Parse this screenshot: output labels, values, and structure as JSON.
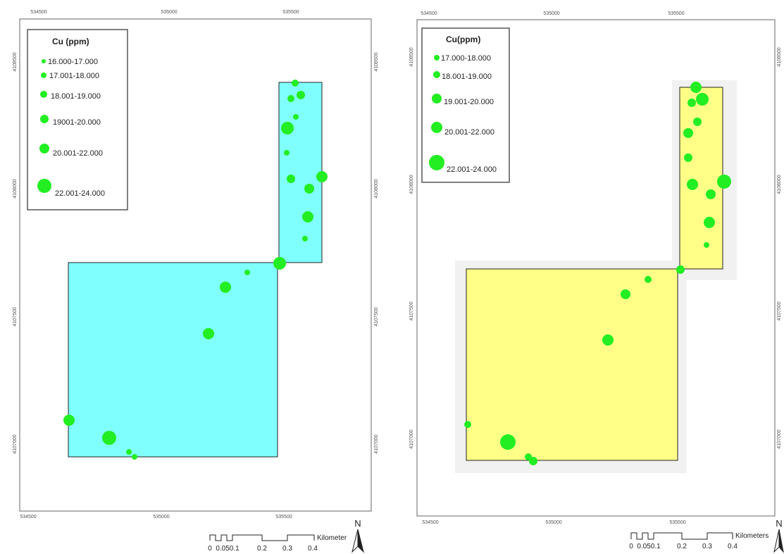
{
  "maps": [
    {
      "legend": {
        "title": "Cu (ppm)",
        "classes": [
          "16.000-17.000",
          "17.001-18.000",
          "18.001-19.000",
          "19001-20.000",
          "20.001-22.000",
          "22.001-24.000"
        ]
      },
      "fill_color": "#80ffff",
      "point_color": "#22ee22",
      "top_ticks": [
        "534500",
        "535000",
        "535500"
      ],
      "bottom_ticks": [
        "534500",
        "535000",
        "535500"
      ],
      "left_ticks": [
        "4108500",
        "4108000",
        "4107500",
        "4107000"
      ],
      "right_ticks": [
        "4108500",
        "4108000",
        "4107500",
        "4107000"
      ],
      "scale_bar": {
        "labels": [
          "0",
          "0.050.1",
          "0.2",
          "0.3",
          "0.4"
        ],
        "unit": "Kilometer"
      },
      "north_label": "N"
    },
    {
      "legend": {
        "title": "Cu(ppm)",
        "classes": [
          "17.000-18.000",
          "18.001-19.000",
          "19.001-20.000",
          "20.001-22.000",
          "22.001-24.000"
        ]
      },
      "fill_color": "#ffff88",
      "point_color": "#22ee22",
      "top_ticks": [
        "534500",
        "535000",
        "535500"
      ],
      "bottom_ticks": [
        "534500",
        "535000",
        "535500"
      ],
      "left_ticks": [
        "4108500",
        "4108000",
        "4107500",
        "4107000"
      ],
      "right_ticks": [
        "4108500",
        "4108000",
        "4107500",
        "4107000"
      ],
      "scale_bar": {
        "labels": [
          "0",
          "0.050.1",
          "0.2",
          "0.3",
          "0.4"
        ],
        "unit": "Kilometers"
      },
      "north_label": "N"
    }
  ]
}
